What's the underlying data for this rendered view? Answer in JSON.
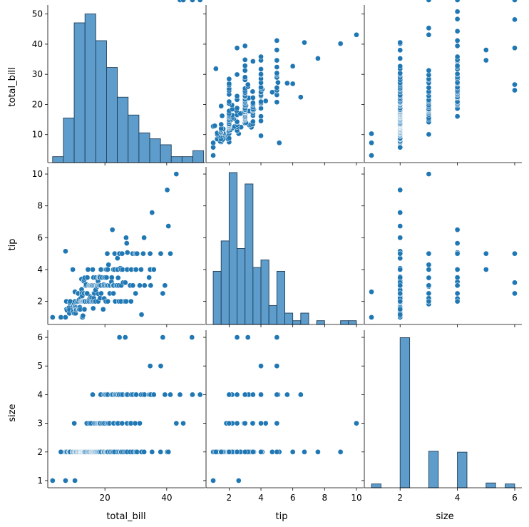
{
  "chart_data": {
    "type": "pairplot",
    "variables": [
      {
        "name": "total_bill",
        "label": "total_bill",
        "xlim": [
          1.5,
          52.5
        ],
        "ylim": [
          0.7,
          53.0
        ],
        "ticks": [
          20,
          40
        ],
        "yticks": [
          10,
          20,
          30,
          40,
          50
        ]
      },
      {
        "name": "tip",
        "label": "tip",
        "xlim": [
          0.55,
          10.45
        ],
        "ylim": [
          0.55,
          10.45
        ],
        "ticks": [
          2,
          4,
          6,
          8,
          10
        ],
        "yticks": [
          2,
          4,
          6,
          8,
          10
        ]
      },
      {
        "name": "size",
        "label": "size",
        "xlim": [
          0.75,
          6.25
        ],
        "ylim": [
          0.75,
          6.25
        ],
        "ticks": [
          2,
          4,
          6
        ],
        "yticks": [
          1,
          2,
          3,
          4,
          5,
          6
        ]
      }
    ],
    "colors": {
      "point": "#1f77b4",
      "bar_fill": "#5d9ccb",
      "bar_edge": "#1f3f5a",
      "spine": "#000000"
    },
    "histograms": {
      "total_bill": {
        "edges": [
          3.07,
          6.56,
          10.05,
          13.55,
          17.04,
          20.53,
          24.02,
          27.51,
          31.01,
          34.5,
          37.99,
          41.48,
          44.97,
          48.47,
          51.96
        ],
        "counts": [
          2,
          15,
          47,
          50,
          41,
          32,
          22,
          16,
          10,
          8,
          6,
          2,
          2,
          4
        ],
        "ylim": [
          0,
          53.0
        ]
      },
      "tip": {
        "edges": [
          1.0,
          1.5,
          2.0,
          2.5,
          3.0,
          3.5,
          4.0,
          4.5,
          5.0,
          5.5,
          6.0,
          6.5,
          7.0,
          7.5,
          8.0,
          8.5,
          9.0,
          9.5,
          10.0
        ],
        "counts": [
          14,
          22,
          40,
          20,
          37,
          15,
          17,
          5,
          14,
          3,
          1,
          3,
          0,
          1,
          0,
          0,
          1,
          1
        ],
        "ylim": [
          0,
          41.5
        ]
      },
      "size": {
        "edges": [
          1.0,
          1.333,
          1.667,
          2.0,
          2.333,
          2.667,
          3.0,
          3.333,
          3.667,
          4.0,
          4.333,
          4.667,
          5.0,
          5.333,
          5.667,
          6.0
        ],
        "counts": [
          4,
          0,
          0,
          156,
          0,
          0,
          38,
          0,
          0,
          37,
          0,
          0,
          5,
          0,
          4
        ],
        "ylim": [
          0,
          163.8
        ]
      }
    },
    "points": {
      "total_bill": [
        3.07,
        5.75,
        7.25,
        7.25,
        7.51,
        7.56,
        7.74,
        8.35,
        8.51,
        8.52,
        8.58,
        8.77,
        9.55,
        9.6,
        9.68,
        9.78,
        10.07,
        10.07,
        10.27,
        10.29,
        10.33,
        10.34,
        10.34,
        10.51,
        10.59,
        10.63,
        10.65,
        10.77,
        11.02,
        11.17,
        11.24,
        11.35,
        11.38,
        11.59,
        11.61,
        11.69,
        11.87,
        12.02,
        12.03,
        12.16,
        12.26,
        12.43,
        12.46,
        12.48,
        12.54,
        12.6,
        12.66,
        12.69,
        12.74,
        12.76,
        12.9,
        13.0,
        13.03,
        13.13,
        13.16,
        13.27,
        13.28,
        13.37,
        13.39,
        13.42,
        13.51,
        13.81,
        13.94,
        14.07,
        14.15,
        14.26,
        14.31,
        14.52,
        14.73,
        14.78,
        14.83,
        15.01,
        15.04,
        15.06,
        15.36,
        15.38,
        15.42,
        15.48,
        15.53,
        15.69,
        15.77,
        15.81,
        15.95,
        15.98,
        16.0,
        16.04,
        16.21,
        16.27,
        16.29,
        16.31,
        16.4,
        16.43,
        16.45,
        16.47,
        16.58,
        16.66,
        16.82,
        16.93,
        16.97,
        16.99,
        17.07,
        17.29,
        17.31,
        17.46,
        17.47,
        17.51,
        17.59,
        17.78,
        17.81,
        17.82,
        17.89,
        17.92,
        18.04,
        18.15,
        18.24,
        18.26,
        18.28,
        18.29,
        18.35,
        18.43,
        18.64,
        18.69,
        18.71,
        18.78,
        19.08,
        19.44,
        19.49,
        19.65,
        19.77,
        19.81,
        19.82,
        20.08,
        20.23,
        20.27,
        20.29,
        20.45,
        20.49,
        20.53,
        20.65,
        20.69,
        20.76,
        20.9,
        20.92,
        21.01,
        21.16,
        21.5,
        21.58,
        21.7,
        22.12,
        22.23,
        22.42,
        22.49,
        22.67,
        22.75,
        22.76,
        22.82,
        23.1,
        23.17,
        23.33,
        23.68,
        23.95,
        24.01,
        24.06,
        24.08,
        24.27,
        24.52,
        24.55,
        24.59,
        24.71,
        25.0,
        25.21,
        25.28,
        25.29,
        25.56,
        25.71,
        25.89,
        26.41,
        26.59,
        26.86,
        26.88,
        27.05,
        27.18,
        27.2,
        27.28,
        28.15,
        28.17,
        28.44,
        28.55,
        28.97,
        29.03,
        29.8,
        29.85,
        29.93,
        30.06,
        30.14,
        30.4,
        31.27,
        31.71,
        31.85,
        32.4,
        32.68,
        32.83,
        34.3,
        34.63,
        34.65,
        34.81,
        35.26,
        35.83,
        38.01,
        38.07,
        38.73,
        39.42,
        40.17,
        40.55,
        41.19,
        43.11,
        44.3,
        45.35,
        48.17,
        48.27,
        48.33,
        50.81
      ],
      "tip": [
        1.0,
        1.0,
        1.0,
        5.15,
        2.0,
        1.5,
        1.44,
        1.6,
        1.25,
        1.48,
        1.92,
        2.0,
        1.45,
        4.0,
        1.32,
        1.71,
        1.83,
        1.25,
        1.71,
        2.6,
        1.67,
        1.66,
        2.0,
        1.25,
        1.61,
        1.5,
        1.5,
        1.47,
        1.98,
        1.5,
        2.5,
        2.5,
        2.0,
        1.5,
        2.09,
        1.5,
        1.63,
        2.0,
        1.5,
        2.2,
        2.0,
        3.4,
        2.75,
        2.0,
        2.5,
        1.0,
        2.34,
        2.0,
        2.0,
        1.0,
        1.1,
        2.0,
        2.0,
        2.0,
        3.27,
        2.5,
        3.35,
        1.5,
        2.0,
        3.48,
        2.0,
        3.0,
        3.06,
        2.5,
        2.0,
        2.5,
        3.5,
        4.0,
        2.0,
        3.0,
        2.0,
        3.0,
        2.16,
        3.0,
        2.3,
        3.0,
        2.0,
        3.0,
        3.0,
        2.22,
        3.0,
        2.0,
        3.0,
        2.03,
        3.0,
        4.0,
        1.56,
        2.0,
        2.5,
        3.5,
        2.2,
        3.0,
        2.5,
        3.0,
        2.5,
        2.0,
        3.0,
        3.0,
        2.71,
        2.0,
        3.5,
        3.0,
        3.0,
        3.0,
        3.0,
        3.0,
        2.94,
        3.27,
        3.5,
        2.0,
        2.47,
        3.0,
        3.5,
        3.0,
        3.0,
        3.5,
        3.5,
        3.55,
        3.5,
        2.2,
        3.0,
        3.0,
        4.0,
        2.5,
        3.5,
        1.5,
        3.0,
        3.06,
        2.18,
        3.5,
        3.0,
        3.5,
        4.0,
        3.0,
        2.0,
        4.0,
        4.0,
        3.5,
        3.0,
        3.0,
        5.0,
        4.0,
        2.0,
        3.0,
        4.3,
        3.0,
        2.5,
        3.0,
        3.23,
        3.5,
        6.5,
        3.0,
        3.0,
        2.5,
        4.0,
        3.0,
        4.0,
        5.0,
        2.0,
        3.0,
        3.0,
        4.0,
        4.71,
        4.0,
        3.48,
        3.0,
        2.0,
        5.0,
        5.0,
        4.08,
        2.0,
        4.0,
        3.0,
        5.0,
        4.0,
        3.18,
        2.0,
        3.18,
        6.0,
        2.0,
        5.65,
        4.0,
        4.0,
        5.07,
        3.0,
        3.0,
        2.0,
        4.0,
        5.0,
        3.0,
        5.0,
        4.0,
        2.5,
        4.0,
        5.0,
        5.0,
        3.0,
        4.0,
        1.17,
        5.0,
        6.0,
        3.0,
        3.5,
        5.0,
        4.0,
        3.0,
        7.58,
        4.0,
        5.0,
        5.0,
        2.5,
        3.0,
        9.0,
        6.73,
        5.0,
        10.0
      ],
      "size": [
        1,
        2,
        1,
        2,
        2,
        2,
        2,
        2,
        2,
        2,
        2,
        2,
        2,
        2,
        2,
        2,
        3,
        2,
        2,
        1,
        2,
        2,
        2,
        2,
        2,
        2,
        2,
        2,
        2,
        2,
        2,
        2,
        2,
        2,
        2,
        2,
        2,
        2,
        2,
        2,
        2,
        2,
        2,
        2,
        2,
        2,
        2,
        2,
        2,
        2,
        2,
        2,
        2,
        2,
        2,
        2,
        2,
        2,
        2,
        2,
        2,
        2,
        2,
        3,
        3,
        2,
        2,
        2,
        2,
        2,
        2,
        3,
        2,
        2,
        2,
        2,
        2,
        2,
        3,
        2,
        2,
        2,
        2,
        2,
        2,
        4,
        2,
        2,
        2,
        2,
        2,
        2,
        2,
        2,
        3,
        2,
        2,
        2,
        2,
        3,
        2,
        2,
        3,
        2,
        2,
        2,
        3,
        2,
        2,
        3,
        2,
        2,
        3,
        2,
        2,
        3,
        2,
        2,
        3,
        3,
        4,
        2,
        2,
        2,
        3,
        2,
        3,
        2,
        4,
        2,
        3,
        4,
        2,
        2,
        4,
        2,
        2,
        3,
        2,
        4,
        2,
        4,
        3,
        2,
        3,
        3,
        2,
        2,
        4,
        2,
        4,
        4,
        2,
        3,
        2,
        3,
        2,
        4,
        4,
        4,
        3,
        4,
        2,
        4,
        3,
        4,
        2,
        4,
        6,
        2,
        2,
        4,
        2,
        3,
        4,
        2,
        2,
        6,
        2,
        4,
        4,
        3,
        2,
        4,
        2,
        3,
        3,
        4,
        2,
        4,
        3,
        2,
        4,
        2,
        4,
        2,
        3,
        4,
        2,
        4,
        2,
        4,
        4,
        4,
        5,
        4,
        2,
        4,
        2,
        5,
        6,
        4,
        2,
        2,
        4,
        3,
        4,
        3,
        6,
        4,
        4,
        4,
        3,
        3,
        4,
        4,
        3,
        4,
        4,
        6,
        3
      ]
    }
  }
}
